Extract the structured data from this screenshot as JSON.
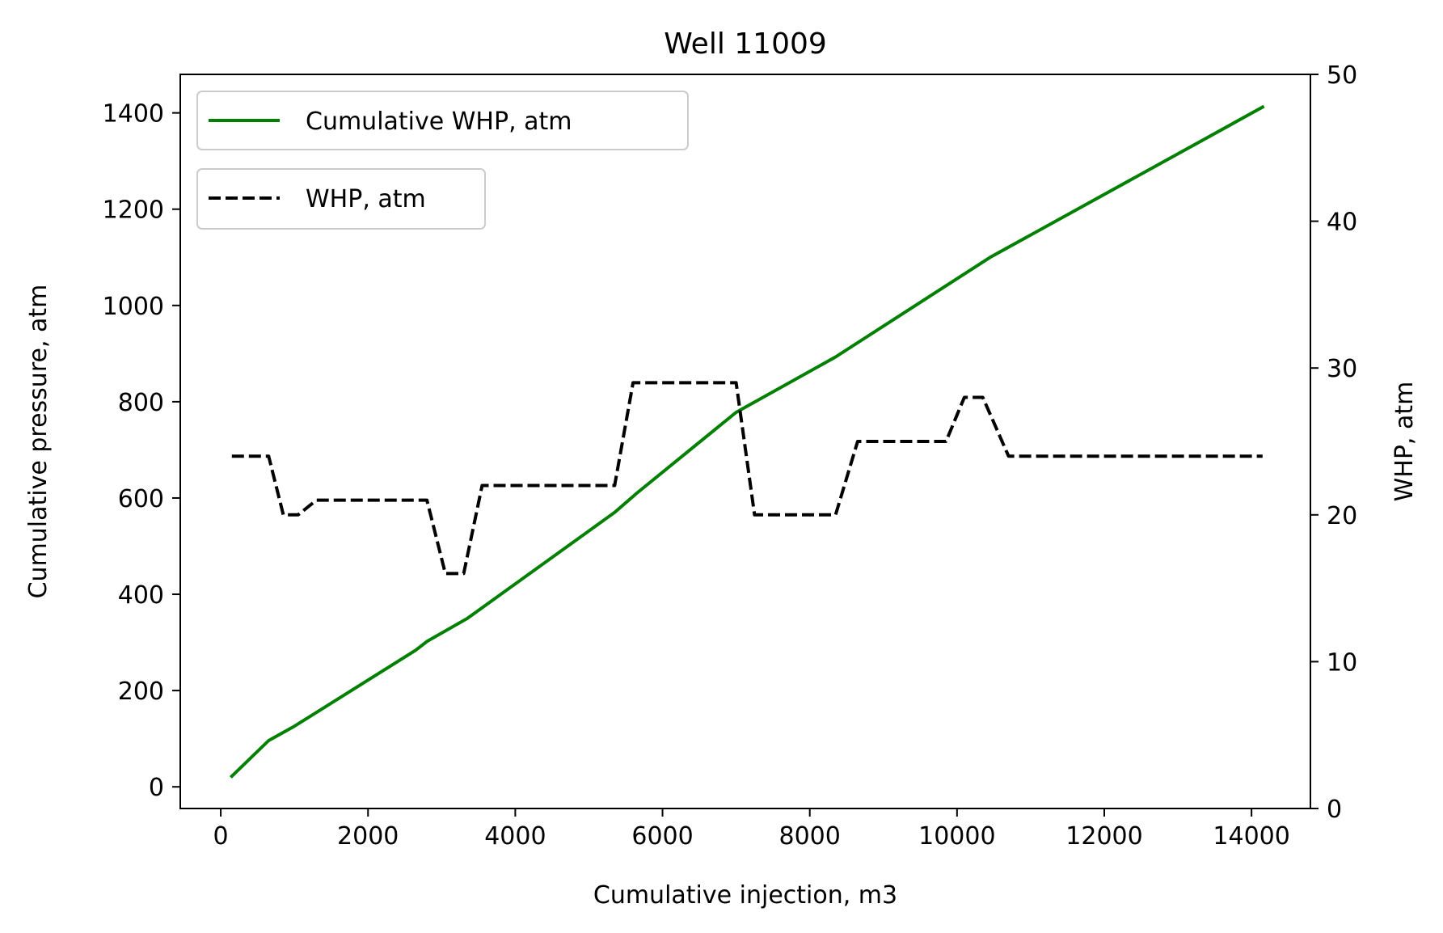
{
  "chart_data": {
    "type": "line",
    "title": "Well 11009",
    "xlabel": "Cumulative injection, m3",
    "ylabel": "Cumulative pressure, atm",
    "y2label": "WHP, atm",
    "xlim": [
      -550,
      14800
    ],
    "ylim": [
      -45,
      1480
    ],
    "y2lim": [
      0,
      50
    ],
    "xticks": [
      0,
      2000,
      4000,
      6000,
      8000,
      10000,
      12000,
      14000
    ],
    "yticks": [
      0,
      200,
      400,
      600,
      800,
      1000,
      1200,
      1400
    ],
    "y2ticks": [
      0,
      10,
      20,
      30,
      40,
      50
    ],
    "grid": false,
    "legend_placement": "top-left",
    "series": [
      {
        "name": "Cumulative WHP, atm",
        "axis": "left",
        "color": "#008000",
        "style": "solid",
        "x": [
          150,
          650,
          1000,
          2650,
          2800,
          3350,
          5350,
          5650,
          7000,
          8350,
          10450,
          14150
        ],
        "y": [
          22,
          96,
          126,
          284,
          302,
          350,
          570,
          610,
          778,
          893,
          1100,
          1412
        ]
      },
      {
        "name": "WHP, atm",
        "axis": "right",
        "color": "#000000",
        "style": "dashed",
        "x": [
          150,
          650,
          850,
          1050,
          1300,
          2800,
          3050,
          3300,
          3550,
          5350,
          5600,
          7000,
          7250,
          8350,
          8650,
          9850,
          10100,
          10350,
          10700,
          14150
        ],
        "y": [
          24,
          24,
          20,
          20,
          21,
          21,
          16,
          16,
          22,
          22,
          29,
          29,
          20,
          20,
          25,
          25,
          28,
          28,
          24,
          24
        ]
      }
    ]
  }
}
